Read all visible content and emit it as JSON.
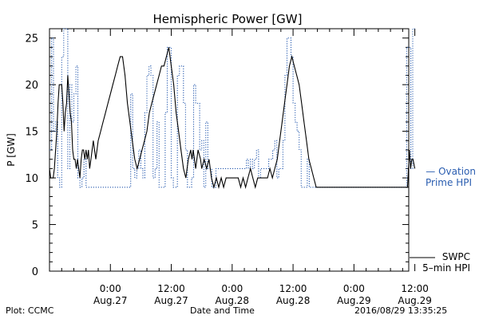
{
  "chart_data": {
    "type": "line",
    "title": "Hemispheric Power [GW]",
    "xlabel": "Date and Time",
    "ylabel": "P [GW]",
    "x_unit": "hours",
    "xlim": [
      -10,
      19.5
    ],
    "ylim": [
      0,
      26
    ],
    "yticks": [
      0,
      5,
      10,
      15,
      20,
      25
    ],
    "xtick_labels": [
      {
        "x": -5,
        "time": "0:00",
        "date": "Aug.27"
      },
      {
        "x": 0,
        "time": "12:00",
        "date": "Aug.27"
      },
      {
        "x": 5,
        "time": "0:00",
        "date": "Aug.28"
      },
      {
        "x": 10,
        "time": "12:00",
        "date": "Aug.28"
      },
      {
        "x": 15,
        "time": "0:00",
        "date": "Aug.29"
      },
      {
        "x": 20,
        "time": "12:00",
        "date": "Aug.29"
      }
    ],
    "legend": [
      {
        "series": "Ovation Prime HPI",
        "line1": "— Ovation",
        "line2": "Prime HPI",
        "color": "#2a5db0"
      },
      {
        "series": "SWPC 5-min HPI",
        "line1": "SWPC",
        "line2": "5–min HPI",
        "color": "#000000"
      }
    ],
    "series": [
      {
        "name": "SWPC 5-min HPI",
        "color": "#000000",
        "style": "solid",
        "points": [
          [
            -10.0,
            11
          ],
          [
            -9.9,
            10
          ],
          [
            -9.7,
            10
          ],
          [
            -9.6,
            11
          ],
          [
            -9.4,
            15
          ],
          [
            -9.3,
            18
          ],
          [
            -9.2,
            20
          ],
          [
            -9.0,
            20
          ],
          [
            -8.9,
            18
          ],
          [
            -8.8,
            15
          ],
          [
            -8.7,
            17
          ],
          [
            -8.6,
            18
          ],
          [
            -8.5,
            21
          ],
          [
            -8.4,
            19
          ],
          [
            -8.3,
            17
          ],
          [
            -8.2,
            16
          ],
          [
            -8.1,
            13
          ],
          [
            -8.0,
            12
          ],
          [
            -7.9,
            12
          ],
          [
            -7.8,
            11
          ],
          [
            -7.7,
            12
          ],
          [
            -7.6,
            11
          ],
          [
            -7.5,
            10
          ],
          [
            -7.4,
            12
          ],
          [
            -7.3,
            13
          ],
          [
            -7.2,
            13
          ],
          [
            -7.1,
            12
          ],
          [
            -7.0,
            13
          ],
          [
            -6.9,
            12
          ],
          [
            -6.8,
            13
          ],
          [
            -6.7,
            11
          ],
          [
            -6.6,
            12
          ],
          [
            -6.5,
            13
          ],
          [
            -6.4,
            14
          ],
          [
            -6.3,
            13
          ],
          [
            -6.2,
            12
          ],
          [
            -6.1,
            13
          ],
          [
            -6.0,
            14
          ],
          [
            -5.8,
            15
          ],
          [
            -5.6,
            16
          ],
          [
            -5.4,
            17
          ],
          [
            -5.2,
            18
          ],
          [
            -5.0,
            19
          ],
          [
            -4.8,
            20
          ],
          [
            -4.6,
            21
          ],
          [
            -4.4,
            22
          ],
          [
            -4.2,
            23
          ],
          [
            -4.0,
            23
          ],
          [
            -3.8,
            21
          ],
          [
            -3.6,
            18
          ],
          [
            -3.4,
            16
          ],
          [
            -3.2,
            14
          ],
          [
            -3.0,
            12
          ],
          [
            -2.8,
            11
          ],
          [
            -2.6,
            12
          ],
          [
            -2.4,
            13
          ],
          [
            -2.2,
            14
          ],
          [
            -2.0,
            15
          ],
          [
            -1.8,
            17
          ],
          [
            -1.6,
            18
          ],
          [
            -1.4,
            19
          ],
          [
            -1.2,
            20
          ],
          [
            -1.0,
            21
          ],
          [
            -0.8,
            22
          ],
          [
            -0.6,
            22
          ],
          [
            -0.4,
            23
          ],
          [
            -0.2,
            24
          ],
          [
            0.0,
            22
          ],
          [
            0.2,
            20
          ],
          [
            0.4,
            17
          ],
          [
            0.6,
            15
          ],
          [
            0.8,
            13
          ],
          [
            1.0,
            11
          ],
          [
            1.2,
            10
          ],
          [
            1.4,
            12
          ],
          [
            1.6,
            13
          ],
          [
            1.7,
            12
          ],
          [
            1.8,
            13
          ],
          [
            2.0,
            11
          ],
          [
            2.2,
            13
          ],
          [
            2.4,
            12
          ],
          [
            2.5,
            11
          ],
          [
            2.7,
            12
          ],
          [
            2.9,
            11
          ],
          [
            3.1,
            12
          ],
          [
            3.3,
            10
          ],
          [
            3.5,
            9
          ],
          [
            3.7,
            10
          ],
          [
            3.9,
            9
          ],
          [
            4.1,
            10
          ],
          [
            4.3,
            9
          ],
          [
            4.5,
            10
          ],
          [
            4.7,
            10
          ],
          [
            4.9,
            10
          ],
          [
            5.1,
            10
          ],
          [
            5.3,
            10
          ],
          [
            5.5,
            10
          ],
          [
            5.7,
            9
          ],
          [
            5.9,
            10
          ],
          [
            6.1,
            9
          ],
          [
            6.3,
            10
          ],
          [
            6.5,
            11
          ],
          [
            6.7,
            10
          ],
          [
            6.9,
            9
          ],
          [
            7.1,
            10
          ],
          [
            7.3,
            10
          ],
          [
            7.5,
            10
          ],
          [
            7.7,
            10
          ],
          [
            7.9,
            10
          ],
          [
            8.1,
            11
          ],
          [
            8.3,
            10
          ],
          [
            8.5,
            11
          ],
          [
            8.7,
            12
          ],
          [
            8.9,
            14
          ],
          [
            9.1,
            16
          ],
          [
            9.3,
            18
          ],
          [
            9.5,
            20
          ],
          [
            9.7,
            22
          ],
          [
            9.9,
            23
          ],
          [
            10.1,
            22
          ],
          [
            10.3,
            21
          ],
          [
            10.5,
            20
          ],
          [
            10.7,
            18
          ],
          [
            10.9,
            16
          ],
          [
            11.1,
            14
          ],
          [
            11.3,
            12
          ],
          [
            11.5,
            11
          ],
          [
            11.7,
            10
          ],
          [
            11.9,
            9
          ],
          [
            12.1,
            9
          ],
          [
            13,
            9
          ],
          [
            14,
            9
          ],
          [
            15,
            9
          ],
          [
            16,
            9
          ],
          [
            17,
            9
          ],
          [
            18,
            9
          ],
          [
            19,
            9
          ],
          [
            19.4,
            9
          ],
          [
            19.55,
            13
          ],
          [
            19.65,
            11
          ],
          [
            19.75,
            12
          ],
          [
            19.85,
            12
          ],
          [
            20.0,
            11
          ]
        ]
      },
      {
        "name": "Ovation Prime HPI",
        "color": "#2a5db0",
        "style": "dotted-step",
        "points": [
          [
            -10.0,
            13
          ],
          [
            -9.83,
            25
          ],
          [
            -9.67,
            15
          ],
          [
            -9.5,
            16
          ],
          [
            -9.33,
            10
          ],
          [
            -9.17,
            9
          ],
          [
            -9.0,
            23
          ],
          [
            -8.83,
            26
          ],
          [
            -8.5,
            11
          ],
          [
            -8.33,
            20
          ],
          [
            -8.17,
            16
          ],
          [
            -8.0,
            19
          ],
          [
            -7.83,
            22
          ],
          [
            -7.67,
            10
          ],
          [
            -7.5,
            9
          ],
          [
            -7.33,
            10
          ],
          [
            -7.17,
            12
          ],
          [
            -7.0,
            9
          ],
          [
            -6.5,
            9
          ],
          [
            -5.5,
            9
          ],
          [
            -4.5,
            9
          ],
          [
            -3.5,
            9
          ],
          [
            -3.33,
            19
          ],
          [
            -3.17,
            11
          ],
          [
            -3.0,
            10
          ],
          [
            -2.83,
            11
          ],
          [
            -2.67,
            13
          ],
          [
            -2.5,
            11
          ],
          [
            -2.33,
            10
          ],
          [
            -2.17,
            17
          ],
          [
            -2.0,
            21
          ],
          [
            -1.83,
            22
          ],
          [
            -1.67,
            21
          ],
          [
            -1.5,
            10
          ],
          [
            -1.33,
            11
          ],
          [
            -1.17,
            16
          ],
          [
            -1.0,
            9
          ],
          [
            -0.83,
            9
          ],
          [
            -0.67,
            9
          ],
          [
            -0.5,
            17
          ],
          [
            -0.33,
            24
          ],
          [
            -0.17,
            24
          ],
          [
            0.0,
            10
          ],
          [
            0.17,
            9
          ],
          [
            0.33,
            9
          ],
          [
            0.5,
            21
          ],
          [
            0.67,
            22
          ],
          [
            0.83,
            22
          ],
          [
            1.0,
            18
          ],
          [
            1.17,
            13
          ],
          [
            1.33,
            9
          ],
          [
            1.5,
            9
          ],
          [
            1.67,
            10
          ],
          [
            1.83,
            20
          ],
          [
            2.0,
            18
          ],
          [
            2.17,
            18
          ],
          [
            2.33,
            13
          ],
          [
            2.5,
            14
          ],
          [
            2.67,
            9
          ],
          [
            2.83,
            16
          ],
          [
            3.0,
            11
          ],
          [
            3.17,
            11
          ],
          [
            3.33,
            9
          ],
          [
            3.5,
            9
          ],
          [
            3.67,
            11
          ],
          [
            4.0,
            11
          ],
          [
            4.5,
            11
          ],
          [
            4.83,
            11
          ],
          [
            5.0,
            11
          ],
          [
            5.5,
            11
          ],
          [
            6.0,
            11
          ],
          [
            6.17,
            12
          ],
          [
            6.33,
            11
          ],
          [
            6.5,
            12
          ],
          [
            6.67,
            11
          ],
          [
            6.83,
            12
          ],
          [
            7.0,
            13
          ],
          [
            7.17,
            10
          ],
          [
            7.33,
            11
          ],
          [
            7.5,
            11
          ],
          [
            7.67,
            11
          ],
          [
            7.83,
            11
          ],
          [
            8.0,
            12
          ],
          [
            8.17,
            12
          ],
          [
            8.33,
            13
          ],
          [
            8.5,
            14
          ],
          [
            8.67,
            10
          ],
          [
            8.83,
            11
          ],
          [
            9.0,
            11
          ],
          [
            9.17,
            14
          ],
          [
            9.33,
            21
          ],
          [
            9.5,
            25
          ],
          [
            9.67,
            25
          ],
          [
            9.83,
            23
          ],
          [
            10.0,
            18
          ],
          [
            10.17,
            16
          ],
          [
            10.33,
            15
          ],
          [
            10.5,
            13
          ],
          [
            10.67,
            9
          ],
          [
            10.83,
            9
          ],
          [
            11.0,
            9
          ],
          [
            11.17,
            12
          ],
          [
            11.33,
            9
          ],
          [
            11.5,
            9
          ],
          [
            12,
            9
          ],
          [
            14,
            9
          ],
          [
            16,
            9
          ],
          [
            18,
            9
          ],
          [
            19.17,
            9
          ],
          [
            19.33,
            24
          ],
          [
            19.5,
            24
          ],
          [
            19.67,
            11
          ],
          [
            19.83,
            26
          ],
          [
            20.0,
            26
          ]
        ]
      }
    ]
  },
  "footer": {
    "left": "Plot: CCMC",
    "center": "Date and Time",
    "right": "2016/08/29 13:35:25"
  }
}
